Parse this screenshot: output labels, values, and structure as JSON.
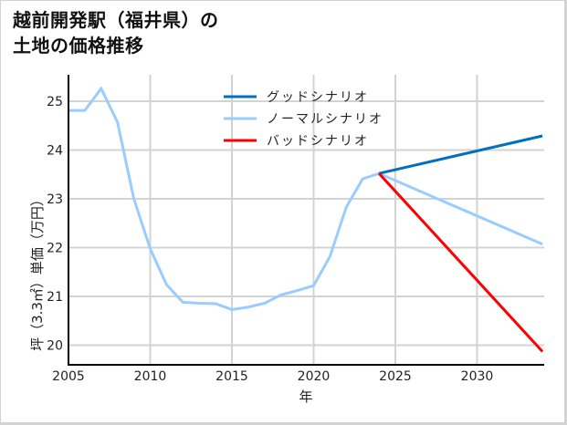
{
  "title": {
    "line1": "越前開発駅（福井県）の",
    "line2": "土地の価格推移"
  },
  "chart_data": {
    "type": "line",
    "title": "越前開発駅（福井県）の土地の価格推移",
    "xlabel": "年",
    "ylabel": "坪（3.3㎡）単価（万円）",
    "xlim": [
      2005,
      2034
    ],
    "ylim": [
      19.6,
      25.5
    ],
    "xticks": [
      2005,
      2010,
      2015,
      2020,
      2025,
      2030
    ],
    "yticks": [
      20,
      21,
      22,
      23,
      24,
      25
    ],
    "grid": true,
    "legend_position": "upper center",
    "series": [
      {
        "name": "ノーマルシナリオ",
        "color": "#99ccff",
        "x": [
          2005,
          2006,
          2007,
          2008,
          2009,
          2010,
          2011,
          2012,
          2013,
          2014,
          2015,
          2016,
          2017,
          2018,
          2019,
          2020,
          2021,
          2022,
          2023,
          2024,
          2034
        ],
        "y": [
          24.81,
          24.81,
          25.26,
          24.57,
          23.0,
          21.98,
          21.24,
          20.88,
          20.86,
          20.85,
          20.73,
          20.78,
          20.86,
          21.03,
          21.12,
          21.22,
          21.82,
          22.83,
          23.41,
          23.52,
          22.07
        ]
      },
      {
        "name": "グッドシナリオ",
        "color": "#0070c0",
        "x": [
          2024,
          2034
        ],
        "y": [
          23.52,
          24.29
        ]
      },
      {
        "name": "バッドシナリオ",
        "color": "#ff0000",
        "x": [
          2024,
          2034
        ],
        "y": [
          23.52,
          19.87
        ]
      }
    ]
  },
  "legend": [
    {
      "label": "グッドシナリオ",
      "color": "#0070c0"
    },
    {
      "label": "ノーマルシナリオ",
      "color": "#99ccff"
    },
    {
      "label": "バッドシナリオ",
      "color": "#ff0000"
    }
  ],
  "axes": {
    "xlabel": "年",
    "ylabel": "坪（3.3㎡）単価（万円）"
  }
}
